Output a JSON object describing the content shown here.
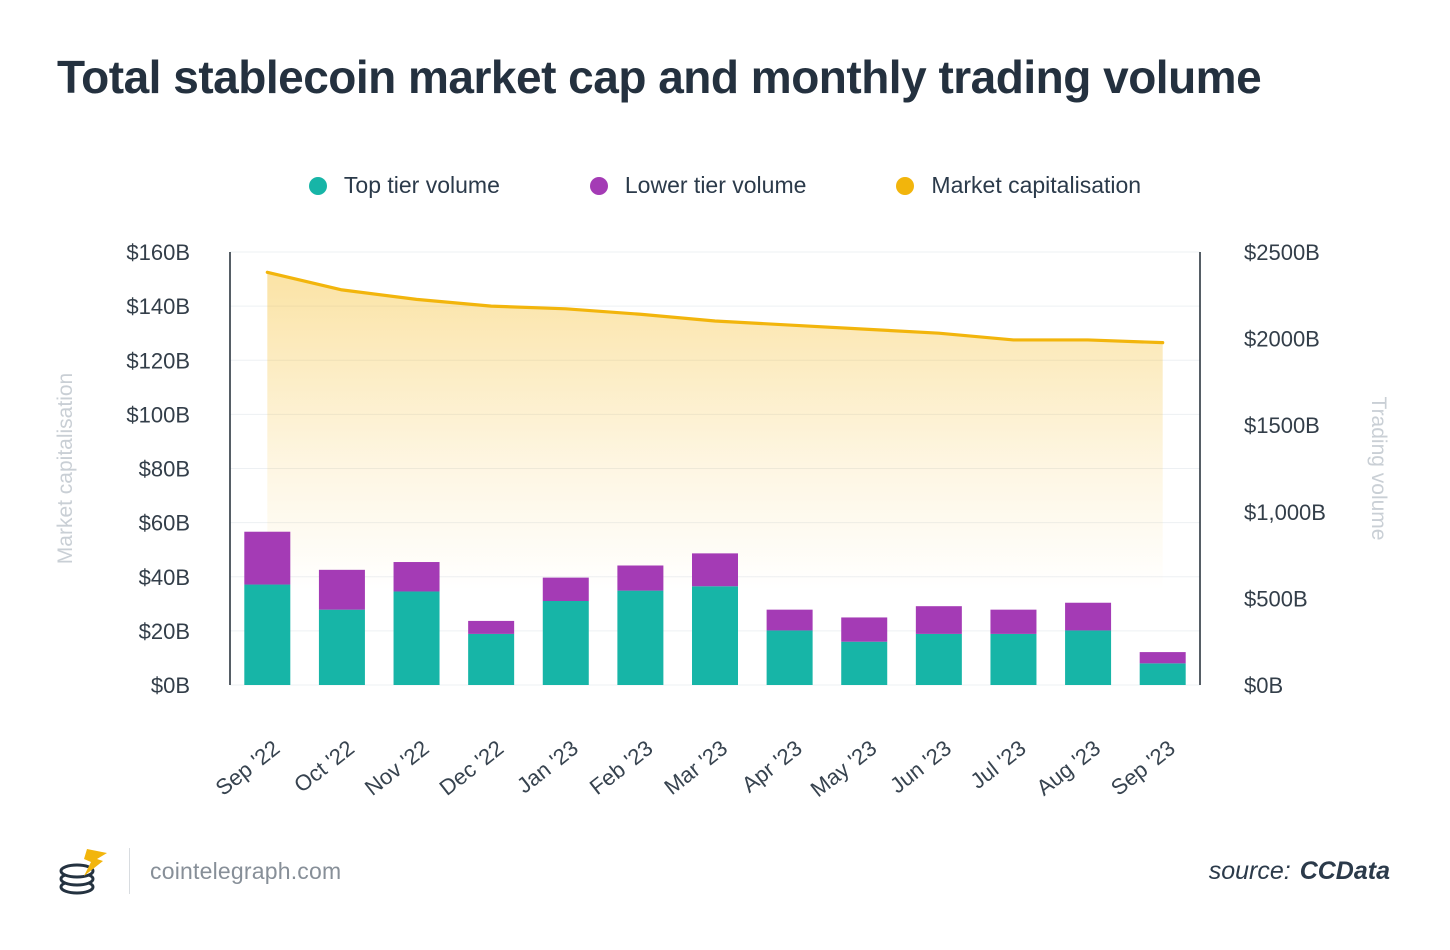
{
  "title": "Total stablecoin market cap and monthly trading volume",
  "legend": {
    "items": [
      {
        "label": "Top tier volume",
        "color": "#17B5A7"
      },
      {
        "label": "Lower tier volume",
        "color": "#A43BB5"
      },
      {
        "label": "Market capitalisation",
        "color": "#F2B50C"
      }
    ]
  },
  "chart_data": {
    "type": "combo",
    "subtype": "stacked-bar with line-area overlay",
    "title": "Total stablecoin market cap and monthly trading volume",
    "categories": [
      "Sep '22",
      "Oct '22",
      "Nov '22",
      "Dec '22",
      "Jan '23",
      "Feb '23",
      "Mar '23",
      "Apr '23",
      "May '23",
      "Jun '23",
      "Jul '23",
      "Aug '23",
      "Sep '23"
    ],
    "series": [
      {
        "name": "Top tier volume",
        "type": "bar",
        "stack": "volume",
        "axis": "right",
        "color": "#17B5A7",
        "values": [
          580,
          435,
          540,
          295,
          485,
          545,
          570,
          315,
          250,
          295,
          295,
          315,
          125
        ]
      },
      {
        "name": "Lower tier volume",
        "type": "bar",
        "stack": "volume",
        "axis": "right",
        "color": "#A43BB5",
        "values": [
          305,
          230,
          170,
          75,
          135,
          145,
          190,
          120,
          140,
          160,
          140,
          160,
          65
        ]
      },
      {
        "name": "Market capitalisation",
        "type": "line-area",
        "axis": "left",
        "color": "#F2B50C",
        "values": [
          152.5,
          146,
          142.5,
          140,
          139,
          137,
          134.5,
          133,
          131.5,
          130,
          127.5,
          127.5,
          126.5
        ]
      }
    ],
    "left_axis": {
      "title": "Market capitalisation",
      "min": 0,
      "max": 160,
      "tick_labels": [
        "$160B",
        "$140B",
        "$120B",
        "$100B",
        "$80B",
        "$60B",
        "$40B",
        "$20B",
        "$0B"
      ],
      "tick_values": [
        160,
        140,
        120,
        100,
        80,
        60,
        40,
        20,
        0
      ]
    },
    "right_axis": {
      "title": "Trading volume",
      "min": 0,
      "max": 2500,
      "tick_labels": [
        "$2500B",
        "$2000B",
        "$1500B",
        "$1,000B",
        "$500B",
        "$0B"
      ],
      "tick_values": [
        2500,
        2000,
        1500,
        1000,
        500,
        0
      ]
    },
    "units": "billions USD",
    "grid": true,
    "legend_position": "top"
  },
  "footer": {
    "site": "cointelegraph.com",
    "source_prefix": "source:",
    "source_name": "CCData"
  }
}
